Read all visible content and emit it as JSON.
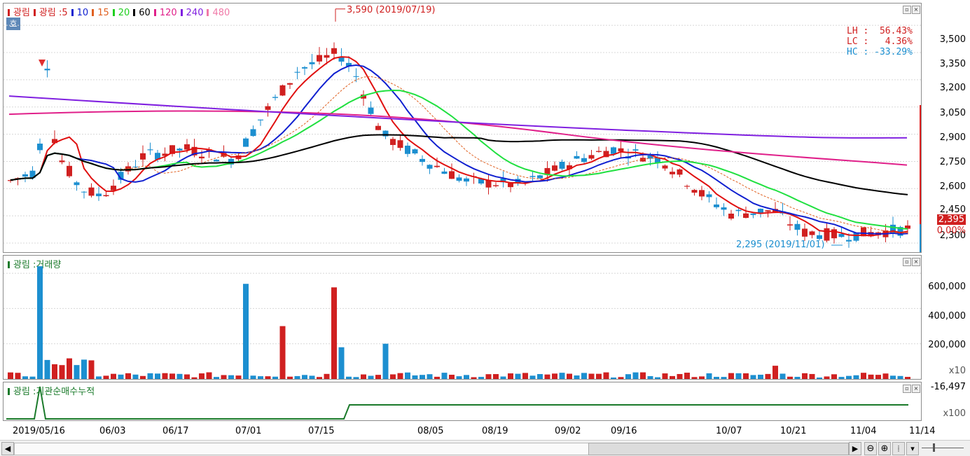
{
  "legend": {
    "price": [
      {
        "label": "광림",
        "color": "#d02020"
      },
      {
        "label": "광림 :5",
        "color": "#d02020"
      },
      {
        "label": "10",
        "color": "#1020d0"
      },
      {
        "label": "15",
        "color": "#e06020"
      },
      {
        "label": "20",
        "color": "#20d020"
      },
      {
        "label": "60",
        "color": "#000000"
      },
      {
        "label": "120",
        "color": "#e0208a"
      },
      {
        "label": "240",
        "color": "#8020e0"
      },
      {
        "label": "480",
        "color": "#f07aa8"
      }
    ],
    "volume": "광림 :거래량",
    "institution": "광림 :기관순매수누적"
  },
  "badge": "호",
  "annotations": {
    "high": "3,590 (2019/07/19)",
    "low": "2,295 (2019/11/01)",
    "lh": "LH :  56.43%",
    "lc": "LC :   4.36%",
    "hc": "HC : -33.29%"
  },
  "price_axis": [
    "3,500",
    "3,350",
    "3,200",
    "3,050",
    "2,900",
    "2,750",
    "2,600",
    "2,450",
    "2,300"
  ],
  "current_price": "2,395",
  "current_change": "0.00%",
  "volume_axis": [
    "600,000",
    "400,000",
    "200,000"
  ],
  "volume_unit": "x10",
  "inst_axis_top": "-16,497",
  "inst_unit": "x100",
  "dates": [
    "2019/05/16",
    "06/03",
    "06/17",
    "07/01",
    "07/15",
    "08/05",
    "08/19",
    "09/02",
    "09/16",
    "10/07",
    "10/21",
    "11/04",
    "11/14"
  ],
  "chart_data": {
    "type": "candlestick",
    "y_range": [
      2250,
      3620
    ],
    "volume_range": [
      0,
      700000
    ],
    "high": {
      "value": 3590,
      "date": "2019/07/19"
    },
    "low": {
      "value": 2295,
      "date": "2019/11/01"
    },
    "last_close": 2395,
    "ma_periods": [
      5,
      10,
      15,
      20,
      60,
      120,
      240,
      480
    ]
  },
  "colors": {
    "up": "#d02020",
    "down": "#1c8fd0",
    "inst": "#1a7a2a"
  }
}
